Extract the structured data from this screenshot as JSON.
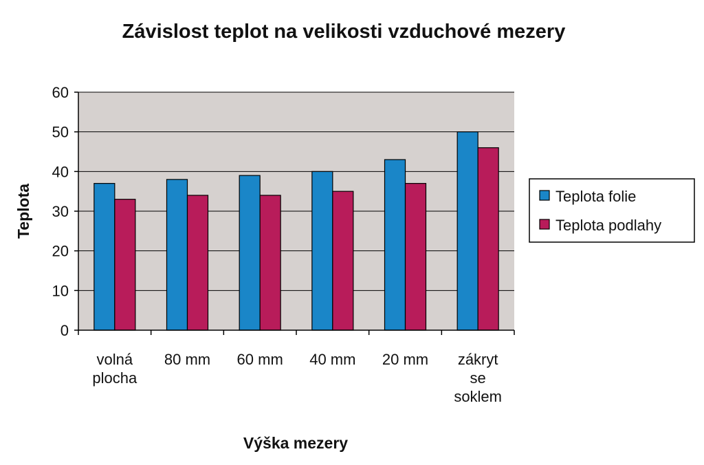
{
  "chart_data": {
    "type": "bar",
    "title": "Závislost teplot na velikosti vzduchové mezery",
    "xlabel": "Výška mezery",
    "ylabel": "Teplota",
    "ylim": [
      0,
      60
    ],
    "yticks": [
      0,
      10,
      20,
      30,
      40,
      50,
      60
    ],
    "grid": true,
    "legend_position": "right",
    "categories": [
      [
        "volná",
        "plocha"
      ],
      [
        "80 mm"
      ],
      [
        "60 mm"
      ],
      [
        "40 mm"
      ],
      [
        "20 mm"
      ],
      [
        "zákryt",
        "se",
        "soklem"
      ]
    ],
    "series": [
      {
        "name": "Teplota folie",
        "color": "#1a86c8",
        "values": [
          37,
          38,
          39,
          40,
          43,
          50
        ]
      },
      {
        "name": "Teplota podlahy",
        "color": "#b81c5a",
        "values": [
          33,
          34,
          34,
          35,
          37,
          46
        ]
      }
    ],
    "plot_background": "#d6d1cf",
    "bar_outline": "#000000"
  }
}
